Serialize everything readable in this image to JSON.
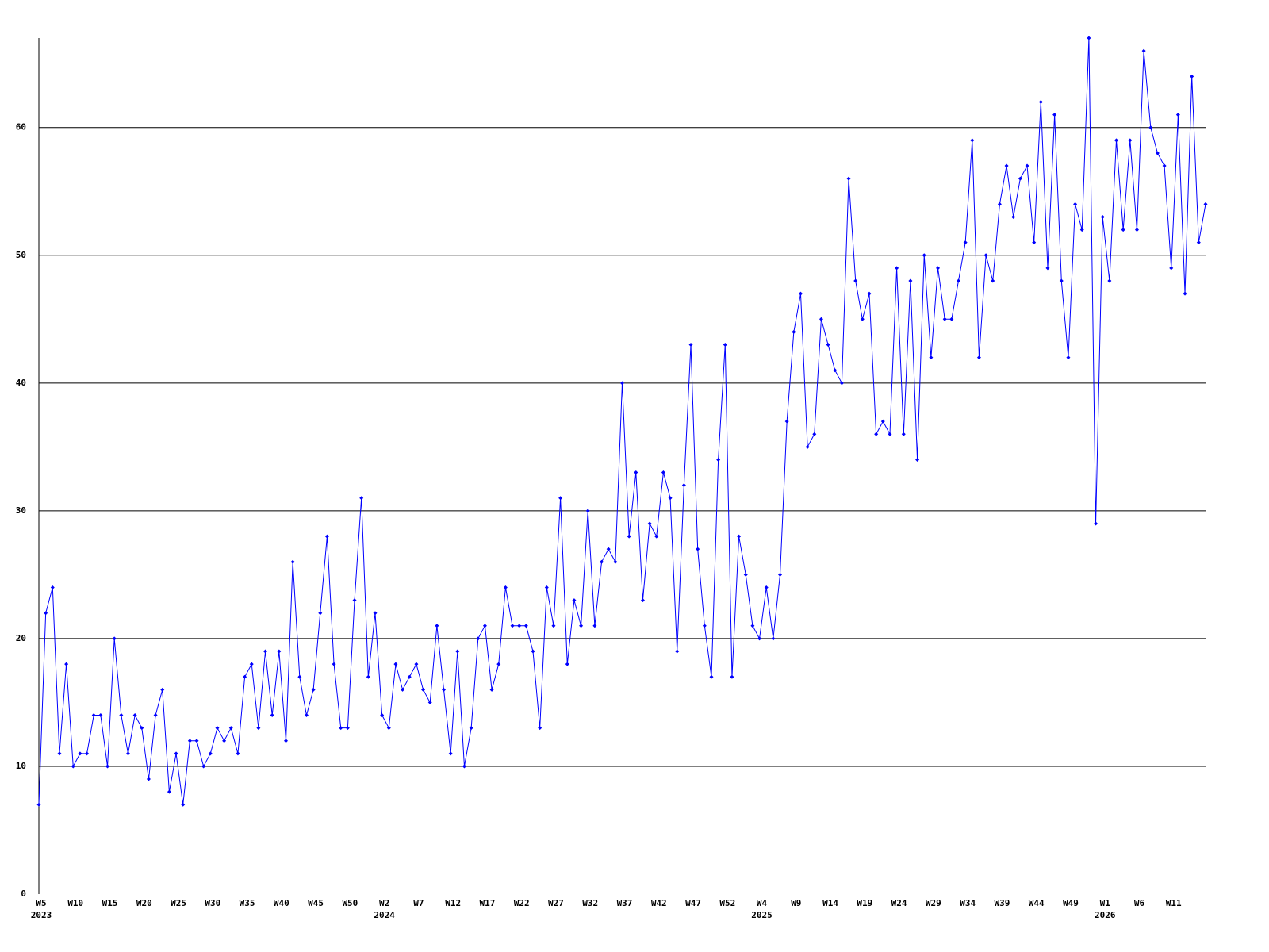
{
  "chart_data": {
    "type": "line",
    "categories": [
      "W5",
      null,
      null,
      null,
      null,
      "W10",
      null,
      null,
      null,
      null,
      "W15",
      null,
      null,
      null,
      null,
      "W20",
      null,
      null,
      null,
      null,
      "W25",
      null,
      null,
      null,
      null,
      "W30",
      null,
      null,
      null,
      null,
      "W35",
      null,
      null,
      null,
      null,
      "W40",
      null,
      null,
      null,
      null,
      "W45",
      null,
      null,
      null,
      null,
      "W50",
      null,
      null,
      null,
      null,
      "W2",
      null,
      null,
      null,
      null,
      "W7",
      null,
      null,
      null,
      null,
      "W12",
      null,
      null,
      null,
      null,
      "W17",
      null,
      null,
      null,
      null,
      "W22",
      null,
      null,
      null,
      null,
      "W27",
      null,
      null,
      null,
      null,
      "W32",
      null,
      null,
      null,
      null,
      "W37",
      null,
      null,
      null,
      null,
      "W42",
      null,
      null,
      null,
      null,
      "W47",
      null,
      null,
      null,
      null,
      "W52",
      null,
      null,
      null,
      null,
      "W4",
      null,
      null,
      null,
      null,
      "W9",
      null,
      null,
      null,
      null,
      "W14",
      null,
      null,
      null,
      null,
      "W19",
      null,
      null,
      null,
      null,
      "W24",
      null,
      null,
      null,
      null,
      "W29",
      null,
      null,
      null,
      null,
      "W34",
      null,
      null,
      null,
      null,
      "W39",
      null,
      null,
      null,
      null,
      "W44",
      null,
      null,
      null,
      null,
      "W49",
      null,
      null,
      null,
      null,
      "W1",
      null,
      null,
      null,
      null,
      "W6",
      null,
      null,
      null,
      null,
      "W11",
      null,
      null,
      null,
      null,
      null
    ],
    "year_categories": [
      "2023",
      null,
      null,
      null,
      null,
      null,
      null,
      null,
      null,
      null,
      null,
      null,
      null,
      null,
      null,
      null,
      null,
      null,
      null,
      null,
      null,
      null,
      null,
      null,
      null,
      null,
      null,
      null,
      null,
      null,
      null,
      null,
      null,
      null,
      null,
      null,
      null,
      null,
      null,
      null,
      null,
      null,
      null,
      null,
      null,
      null,
      null,
      null,
      null,
      null,
      "2024",
      null,
      null,
      null,
      null,
      null,
      null,
      null,
      null,
      null,
      null,
      null,
      null,
      null,
      null,
      null,
      null,
      null,
      null,
      null,
      null,
      null,
      null,
      null,
      null,
      null,
      null,
      null,
      null,
      null,
      null,
      null,
      null,
      null,
      null,
      null,
      null,
      null,
      null,
      null,
      null,
      null,
      null,
      null,
      null,
      null,
      null,
      null,
      null,
      null,
      null,
      null,
      null,
      null,
      null,
      "2025",
      null,
      null,
      null,
      null,
      null,
      null,
      null,
      null,
      null,
      null,
      null,
      null,
      null,
      null,
      null,
      null,
      null,
      null,
      null,
      null,
      null,
      null,
      null,
      null,
      null,
      null,
      null,
      null,
      null,
      null,
      null,
      null,
      null,
      null,
      null,
      null,
      null,
      null,
      null,
      null,
      null,
      null,
      null,
      null,
      null,
      null,
      null,
      null,
      null,
      "2026",
      null,
      null,
      null,
      null,
      null,
      null,
      null,
      null,
      null,
      null,
      null,
      null,
      null,
      null,
      null
    ],
    "values": [
      7,
      22,
      24,
      11,
      18,
      10,
      11,
      11,
      14,
      14,
      10,
      20,
      14,
      11,
      14,
      13,
      9,
      14,
      16,
      8,
      11,
      7,
      12,
      12,
      10,
      11,
      13,
      12,
      13,
      11,
      17,
      18,
      13,
      19,
      14,
      19,
      12,
      26,
      17,
      14,
      16,
      22,
      28,
      18,
      13,
      13,
      23,
      31,
      17,
      22,
      14,
      13,
      18,
      16,
      17,
      18,
      16,
      15,
      21,
      16,
      11,
      19,
      10,
      13,
      20,
      21,
      16,
      18,
      24,
      21,
      21,
      21,
      19,
      13,
      24,
      21,
      31,
      18,
      23,
      21,
      30,
      21,
      26,
      27,
      26,
      40,
      28,
      33,
      23,
      29,
      28,
      33,
      31,
      19,
      32,
      43,
      27,
      21,
      17,
      34,
      43,
      17,
      28,
      25,
      21,
      20,
      24,
      20,
      25,
      37,
      44,
      47,
      35,
      36,
      45,
      43,
      41,
      40,
      56,
      48,
      45,
      47,
      36,
      37,
      36,
      49,
      36,
      48,
      34,
      50,
      42,
      49,
      45,
      45,
      48,
      51,
      59,
      42,
      50,
      48,
      54,
      57,
      53,
      56,
      57,
      51,
      62,
      49,
      61,
      48,
      42,
      54,
      52,
      67,
      29,
      53,
      48,
      59,
      52,
      59,
      52,
      66,
      60,
      58,
      57,
      49,
      61,
      47,
      64,
      51,
      54
    ],
    "color": "#0000ff",
    "ylim": [
      0,
      67
    ],
    "yticks": [
      0,
      10,
      20,
      30,
      40,
      50,
      60
    ],
    "grid": true
  }
}
